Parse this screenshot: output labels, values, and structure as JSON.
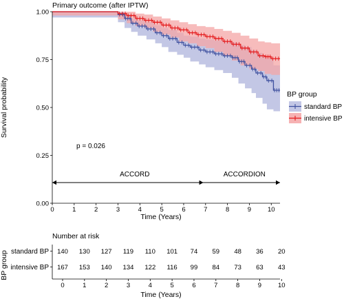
{
  "chart_data": [
    {
      "type": "line",
      "subtype": "kaplan-meier",
      "title": "Primary outcome (after IPTW)",
      "xlabel": "Time (Years)",
      "ylabel": "Survival probability",
      "xlim": [
        0,
        10.4
      ],
      "ylim": [
        0,
        1
      ],
      "x_ticks": [
        "0",
        "1",
        "2",
        "3",
        "4",
        "5",
        "6",
        "7",
        "8",
        "9",
        "10"
      ],
      "y_ticks": [
        "0.00",
        "0.25",
        "0.50",
        "0.75",
        "1.00"
      ],
      "legend": {
        "title": "BP group",
        "placement": "right",
        "entries": [
          "standard BP",
          "intensive BP"
        ]
      },
      "annotation": "p = 0.026",
      "periods": [
        {
          "label": "ACCORD",
          "from": 0,
          "to": 6.9
        },
        {
          "label": "ACCORDION",
          "from": 6.9,
          "to": 10.4
        }
      ],
      "series": [
        {
          "name": "standard BP",
          "color": "#3d4f9e",
          "band_color": "#b8bde0",
          "x": [
            0,
            3.0,
            3.3,
            3.6,
            3.9,
            4.3,
            4.7,
            5.0,
            5.3,
            5.7,
            6.0,
            6.3,
            6.7,
            7.0,
            7.4,
            7.8,
            8.2,
            8.5,
            8.8,
            9.1,
            9.3,
            9.6,
            9.8,
            10.1,
            10.4
          ],
          "values": [
            1.0,
            0.985,
            0.965,
            0.94,
            0.925,
            0.91,
            0.89,
            0.875,
            0.86,
            0.84,
            0.825,
            0.815,
            0.8,
            0.79,
            0.78,
            0.77,
            0.76,
            0.74,
            0.72,
            0.7,
            0.68,
            0.66,
            0.64,
            0.59,
            0.59
          ],
          "lower": [
            1.0,
            0.97,
            0.945,
            0.915,
            0.895,
            0.875,
            0.855,
            0.835,
            0.815,
            0.79,
            0.775,
            0.76,
            0.74,
            0.725,
            0.71,
            0.695,
            0.68,
            0.655,
            0.625,
            0.6,
            0.575,
            0.55,
            0.52,
            0.49,
            0.48
          ],
          "upper": [
            1.0,
            1.0,
            0.985,
            0.965,
            0.955,
            0.945,
            0.93,
            0.915,
            0.905,
            0.89,
            0.875,
            0.87,
            0.86,
            0.855,
            0.85,
            0.845,
            0.84,
            0.825,
            0.815,
            0.8,
            0.785,
            0.77,
            0.755,
            0.72,
            0.71
          ]
        },
        {
          "name": "intensive BP",
          "color": "#e41a1c",
          "band_color": "#f4a5a6",
          "x": [
            0,
            3.0,
            3.4,
            3.8,
            4.2,
            4.6,
            5.0,
            5.4,
            5.8,
            6.2,
            6.6,
            7.0,
            7.4,
            7.8,
            8.2,
            8.6,
            9.0,
            9.4,
            9.7,
            10.0,
            10.4
          ],
          "values": [
            1.0,
            0.99,
            0.98,
            0.965,
            0.955,
            0.945,
            0.93,
            0.915,
            0.905,
            0.89,
            0.88,
            0.87,
            0.86,
            0.845,
            0.83,
            0.81,
            0.79,
            0.77,
            0.765,
            0.755,
            0.755
          ],
          "lower": [
            1.0,
            0.98,
            0.96,
            0.94,
            0.925,
            0.915,
            0.895,
            0.88,
            0.865,
            0.845,
            0.835,
            0.82,
            0.81,
            0.79,
            0.77,
            0.745,
            0.72,
            0.7,
            0.69,
            0.675,
            0.67
          ],
          "upper": [
            1.0,
            1.0,
            1.0,
            0.99,
            0.985,
            0.975,
            0.965,
            0.955,
            0.945,
            0.935,
            0.925,
            0.92,
            0.91,
            0.9,
            0.89,
            0.875,
            0.86,
            0.845,
            0.84,
            0.835,
            0.83
          ]
        }
      ]
    },
    {
      "type": "table",
      "title": "Number at risk",
      "xlabel": "Time (Years)",
      "ylabel": "BP group",
      "x_ticks": [
        "0",
        "1",
        "2",
        "3",
        "4",
        "5",
        "6",
        "7",
        "8",
        "9",
        "10"
      ],
      "rows": [
        {
          "name": "standard BP",
          "values": [
            "140",
            "130",
            "127",
            "119",
            "110",
            "101",
            "74",
            "59",
            "48",
            "36",
            "20"
          ]
        },
        {
          "name": "intensive BP",
          "values": [
            "167",
            "153",
            "140",
            "134",
            "122",
            "116",
            "99",
            "84",
            "73",
            "63",
            "43"
          ]
        }
      ]
    }
  ]
}
